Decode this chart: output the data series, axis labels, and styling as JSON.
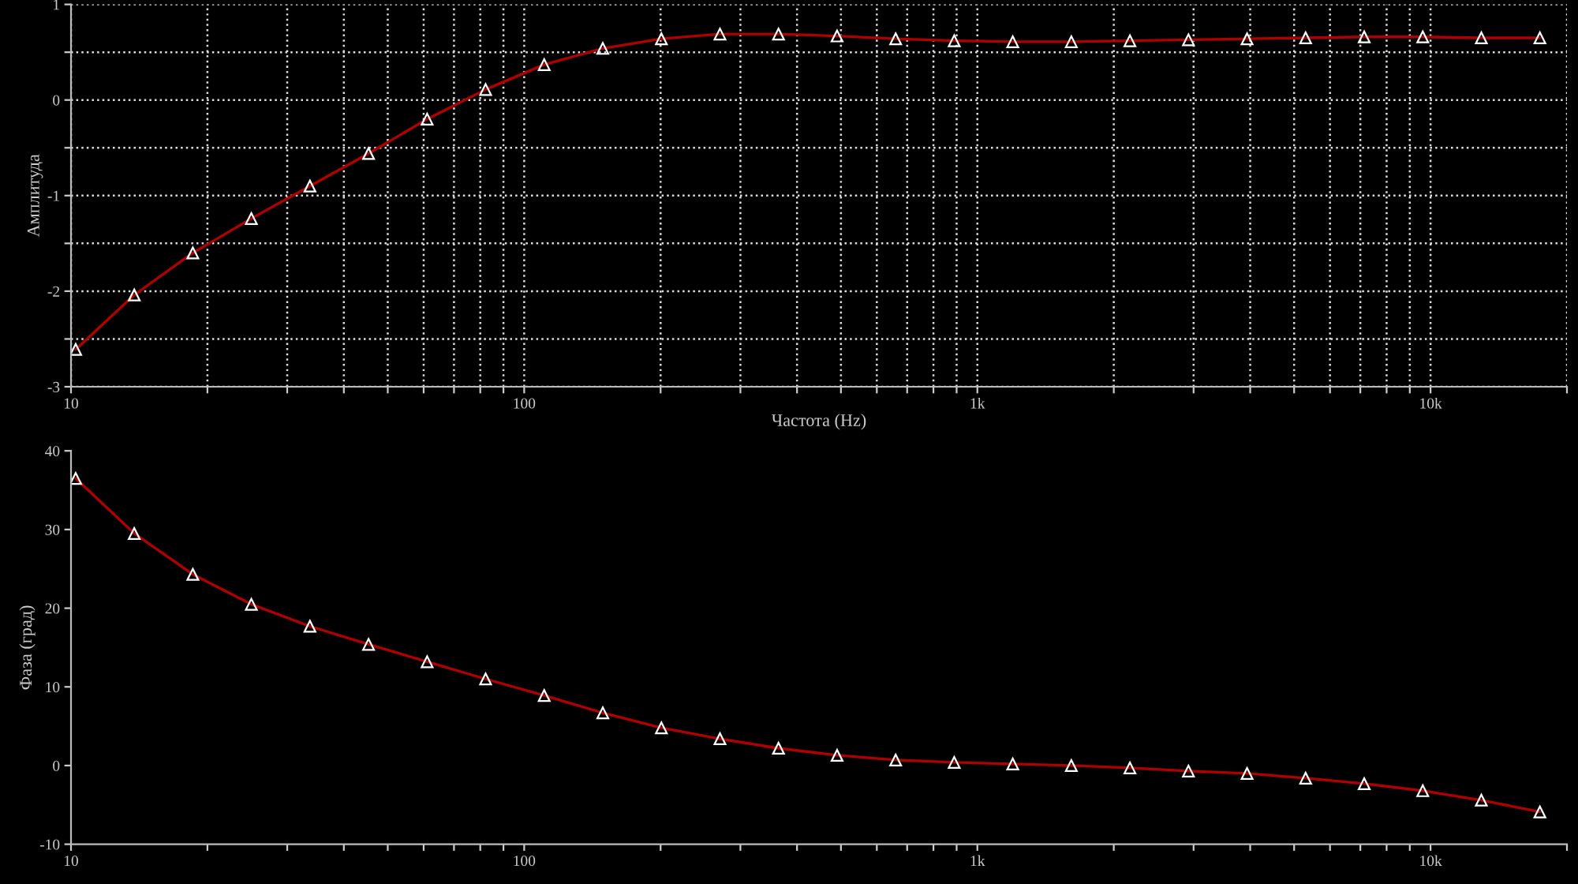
{
  "chart_data": [
    {
      "type": "line",
      "ylabel": "Амплитуда",
      "xlabel": "Частота (Hz)",
      "log": "x",
      "grid": true,
      "marker": "triangle",
      "line_style": "solid",
      "x": [
        10.24,
        13.79,
        18.57,
        25.0,
        33.67,
        45.35,
        61.07,
        82.2,
        110.7,
        149.1,
        200.8,
        270.4,
        364.1,
        490.3,
        660.3,
        889,
        1197,
        1612,
        2171,
        2923,
        3937,
        5301,
        7139,
        9613,
        12945,
        17432
      ],
      "series": [
        {
          "color": "#b00000",
          "values": [
            -2.61,
            -2.04,
            -1.6,
            -1.24,
            -0.9,
            -0.56,
            -0.2,
            0.11,
            0.37,
            0.54,
            0.64,
            0.69,
            0.69,
            0.67,
            0.64,
            0.62,
            0.61,
            0.61,
            0.62,
            0.63,
            0.64,
            0.65,
            0.66,
            0.66,
            0.65,
            0.65
          ]
        }
      ],
      "xlim": [
        10,
        20000
      ],
      "xticks": [
        {
          "value": 10,
          "label": "10"
        },
        {
          "value": 20,
          "label": null
        },
        {
          "value": 30,
          "label": null
        },
        {
          "value": 40,
          "label": null
        },
        {
          "value": 50,
          "label": null
        },
        {
          "value": 60,
          "label": null
        },
        {
          "value": 70,
          "label": null
        },
        {
          "value": 80,
          "label": null
        },
        {
          "value": 90,
          "label": null
        },
        {
          "value": 100,
          "label": "100"
        },
        {
          "value": 200,
          "label": null
        },
        {
          "value": 300,
          "label": null
        },
        {
          "value": 400,
          "label": null
        },
        {
          "value": 500,
          "label": null
        },
        {
          "value": 600,
          "label": null
        },
        {
          "value": 700,
          "label": null
        },
        {
          "value": 800,
          "label": null
        },
        {
          "value": 900,
          "label": null
        },
        {
          "value": 1000,
          "label": "1k"
        },
        {
          "value": 2000,
          "label": null
        },
        {
          "value": 3000,
          "label": null
        },
        {
          "value": 4000,
          "label": null
        },
        {
          "value": 5000,
          "label": null
        },
        {
          "value": 6000,
          "label": null
        },
        {
          "value": 7000,
          "label": null
        },
        {
          "value": 8000,
          "label": null
        },
        {
          "value": 9000,
          "label": null
        },
        {
          "value": 10000,
          "label": "10k"
        },
        {
          "value": 20000,
          "label": null
        }
      ],
      "ylim": [
        -3,
        1
      ],
      "yticks": [
        -3,
        {
          "value": -2.5,
          "label": null
        },
        -2,
        {
          "value": -1.5,
          "label": null
        },
        -1,
        {
          "value": -0.5,
          "label": null
        },
        0,
        {
          "value": 0.5,
          "label": null
        },
        1
      ]
    },
    {
      "type": "line",
      "ylabel": "Фаза (град)",
      "log": "x",
      "grid": false,
      "marker": "triangle",
      "line_style": "solid",
      "x": [
        10.24,
        13.79,
        18.57,
        25.0,
        33.67,
        45.35,
        61.07,
        82.2,
        110.7,
        149.1,
        200.8,
        270.4,
        364.1,
        490.3,
        660.3,
        889,
        1197,
        1612,
        2171,
        2923,
        3937,
        5301,
        7139,
        9613,
        12945,
        17432
      ],
      "series": [
        {
          "color": "#b00000",
          "values": [
            36.5,
            29.5,
            24.3,
            20.5,
            17.7,
            15.4,
            13.2,
            11.0,
            8.9,
            6.7,
            4.8,
            3.4,
            2.2,
            1.3,
            0.7,
            0.4,
            0.2,
            0.0,
            -0.3,
            -0.7,
            -1.0,
            -1.6,
            -2.3,
            -3.2,
            -4.4,
            -5.9
          ]
        }
      ],
      "xlim": [
        10,
        20000
      ],
      "xticks": [
        {
          "value": 10,
          "label": "10"
        },
        {
          "value": 20,
          "label": null
        },
        {
          "value": 30,
          "label": null
        },
        {
          "value": 40,
          "label": null
        },
        {
          "value": 50,
          "label": null
        },
        {
          "value": 60,
          "label": null
        },
        {
          "value": 70,
          "label": null
        },
        {
          "value": 80,
          "label": null
        },
        {
          "value": 90,
          "label": null
        },
        {
          "value": 100,
          "label": "100"
        },
        {
          "value": 200,
          "label": null
        },
        {
          "value": 300,
          "label": null
        },
        {
          "value": 400,
          "label": null
        },
        {
          "value": 500,
          "label": null
        },
        {
          "value": 600,
          "label": null
        },
        {
          "value": 700,
          "label": null
        },
        {
          "value": 800,
          "label": null
        },
        {
          "value": 900,
          "label": null
        },
        {
          "value": 1000,
          "label": "1k"
        },
        {
          "value": 2000,
          "label": null
        },
        {
          "value": 3000,
          "label": null
        },
        {
          "value": 4000,
          "label": null
        },
        {
          "value": 5000,
          "label": null
        },
        {
          "value": 6000,
          "label": null
        },
        {
          "value": 7000,
          "label": null
        },
        {
          "value": 8000,
          "label": null
        },
        {
          "value": 9000,
          "label": null
        },
        {
          "value": 10000,
          "label": "10k"
        },
        {
          "value": 20000,
          "label": null
        }
      ],
      "ylim": [
        -10,
        40
      ],
      "yticks": [
        -10,
        0,
        10,
        20,
        30,
        40
      ]
    }
  ]
}
